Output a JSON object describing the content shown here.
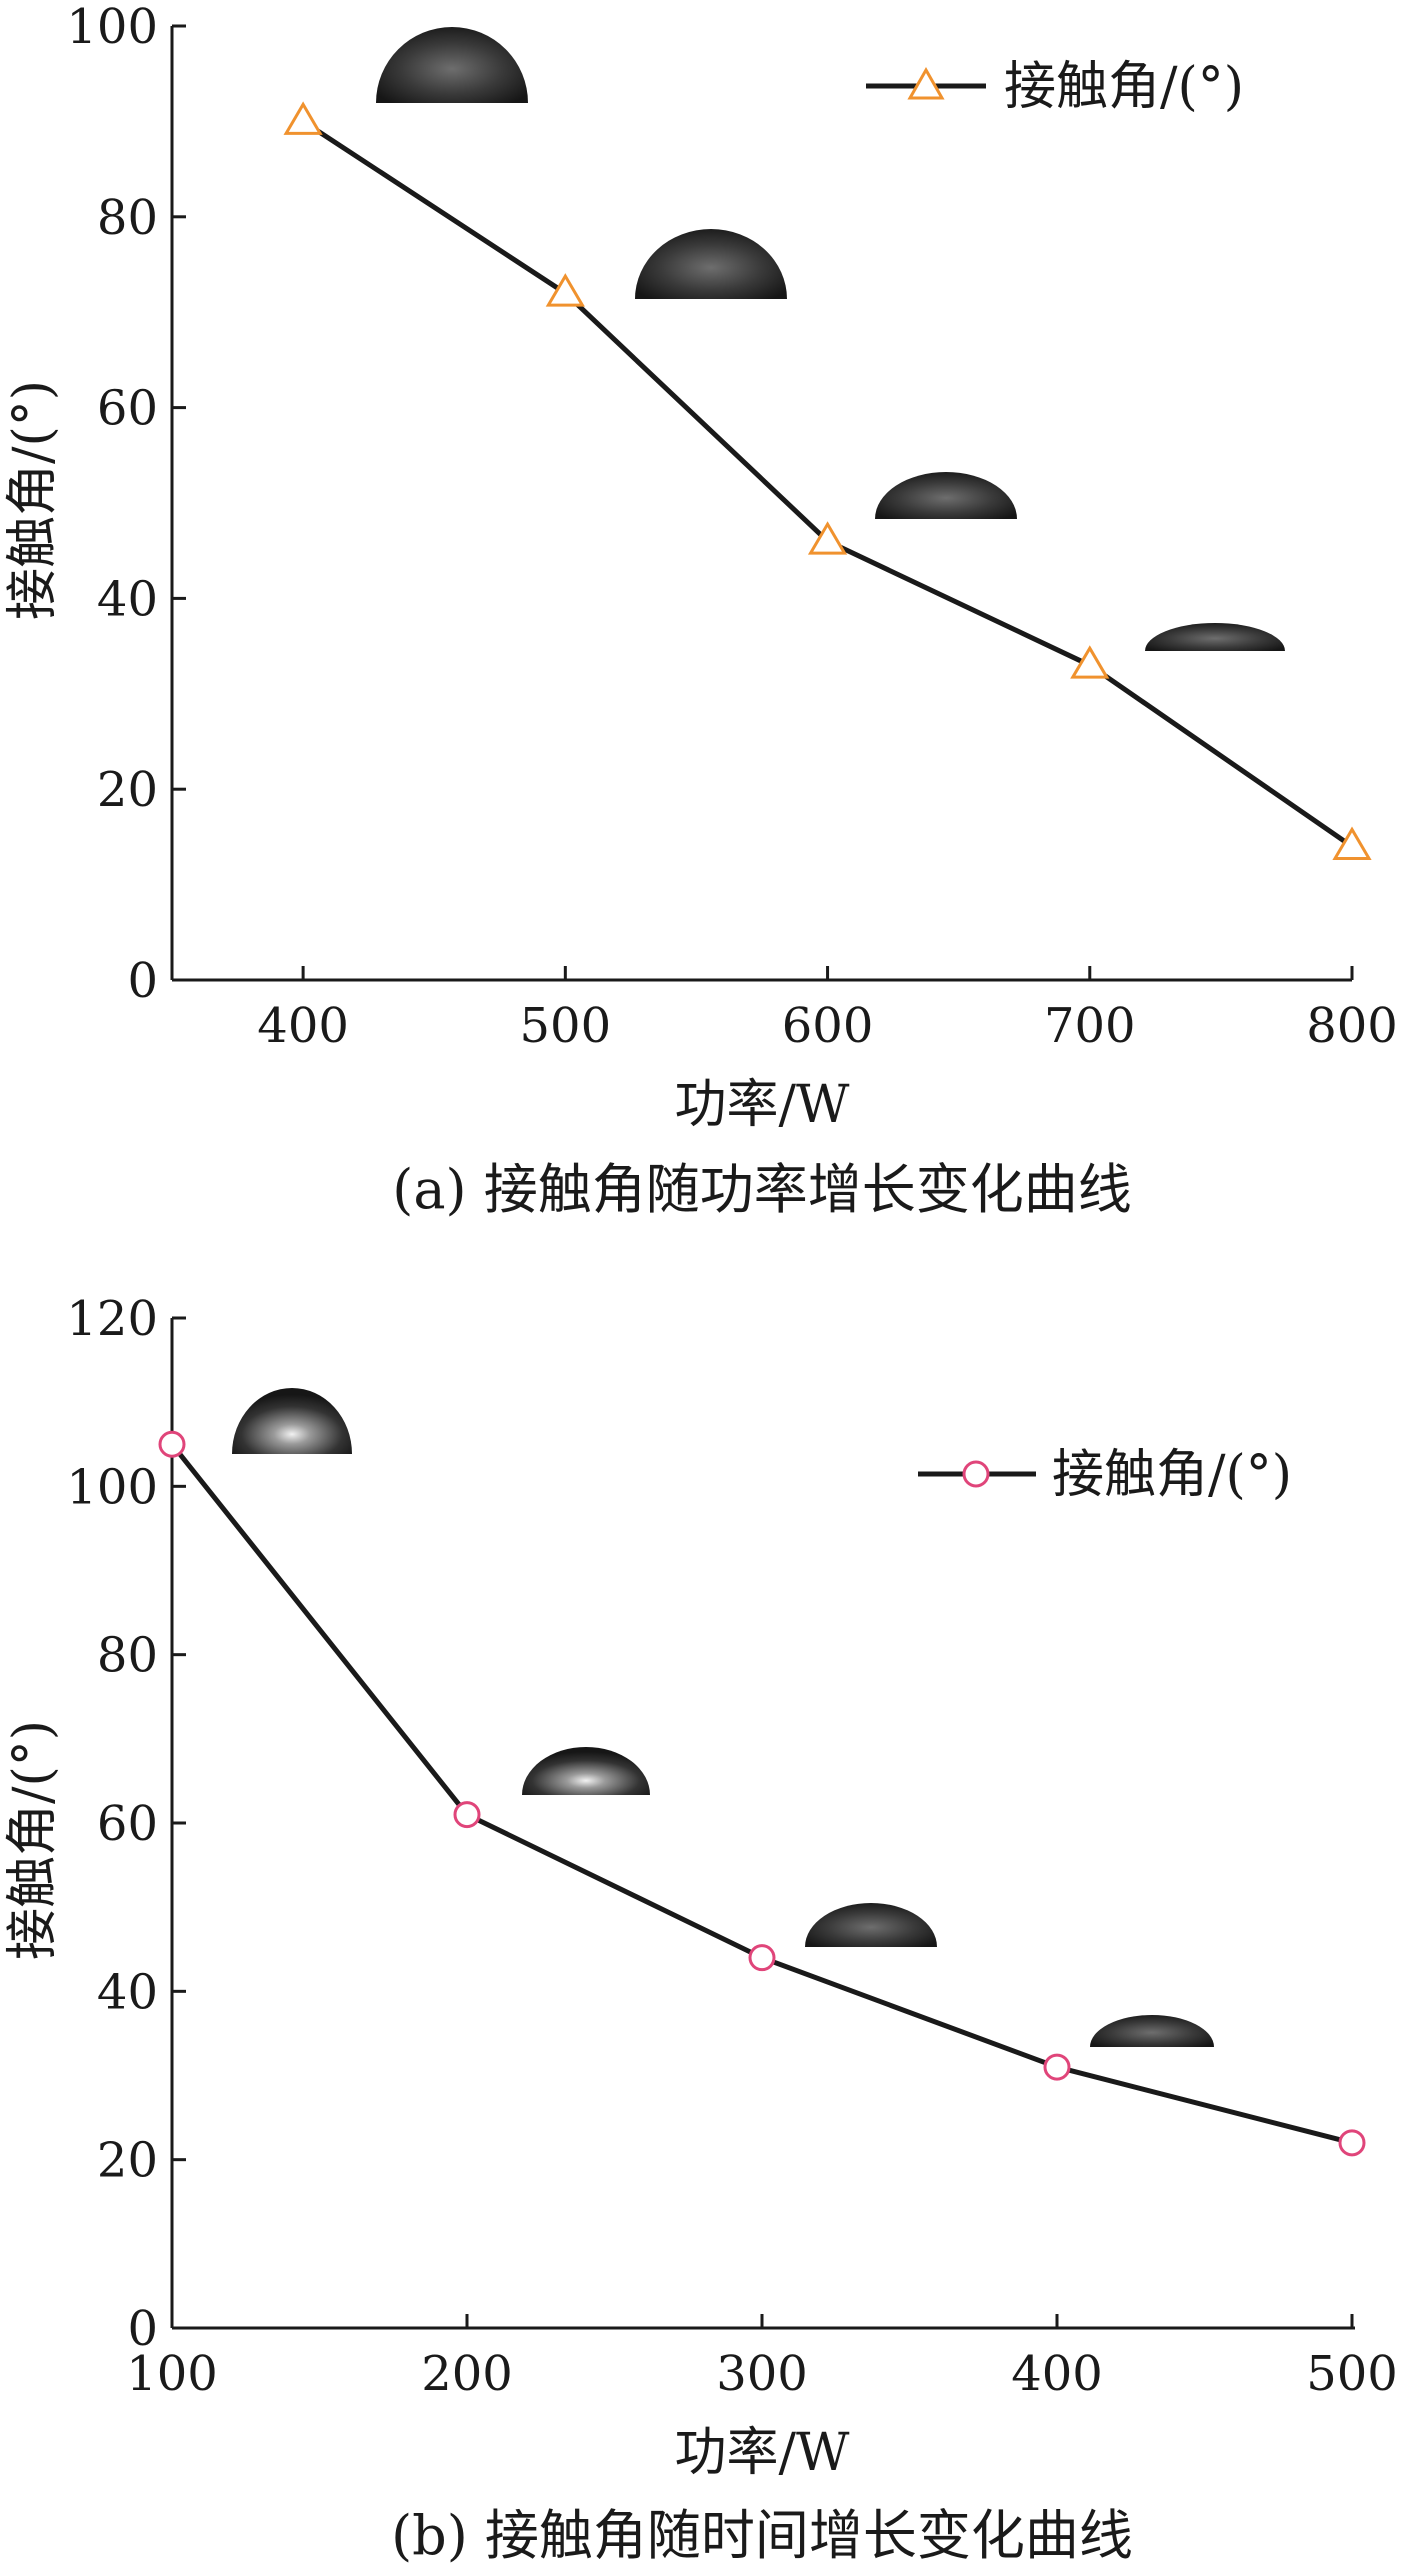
{
  "chart_data": [
    {
      "type": "line",
      "caption": "(a) 接触角随功率增长变化曲线",
      "xlabel": "功率/W",
      "ylabel": "接触角/(°)",
      "xlim": [
        350,
        800
      ],
      "ylim": [
        0,
        100
      ],
      "x_ticks": [
        400,
        500,
        600,
        700,
        800
      ],
      "y_ticks": [
        0,
        20,
        40,
        60,
        80,
        100
      ],
      "marker": "triangle",
      "marker_color": "#f0922e",
      "line_color": "#1a1a1a",
      "legend_position": "top-right",
      "grid": false,
      "series": [
        {
          "name": "接触角/(°)",
          "x": [
            400,
            500,
            600,
            700,
            800
          ],
          "values": [
            90,
            72,
            46,
            33,
            14
          ]
        }
      ]
    },
    {
      "type": "line",
      "caption": "(b) 接触角随时间增长变化曲线",
      "xlabel": "功率/W",
      "ylabel": "接触角/(°)",
      "xlim": [
        100,
        500
      ],
      "ylim": [
        0,
        120
      ],
      "x_ticks": [
        100,
        200,
        300,
        400,
        500
      ],
      "y_ticks": [
        0,
        20,
        40,
        60,
        80,
        100,
        120
      ],
      "marker": "circle",
      "marker_color": "#e0457a",
      "line_color": "#1a1a1a",
      "legend_position": "top-right",
      "grid": false,
      "series": [
        {
          "name": "接触角/(°)",
          "x": [
            100,
            200,
            300,
            400,
            500
          ],
          "values": [
            105,
            61,
            44,
            31,
            22
          ]
        }
      ]
    }
  ]
}
